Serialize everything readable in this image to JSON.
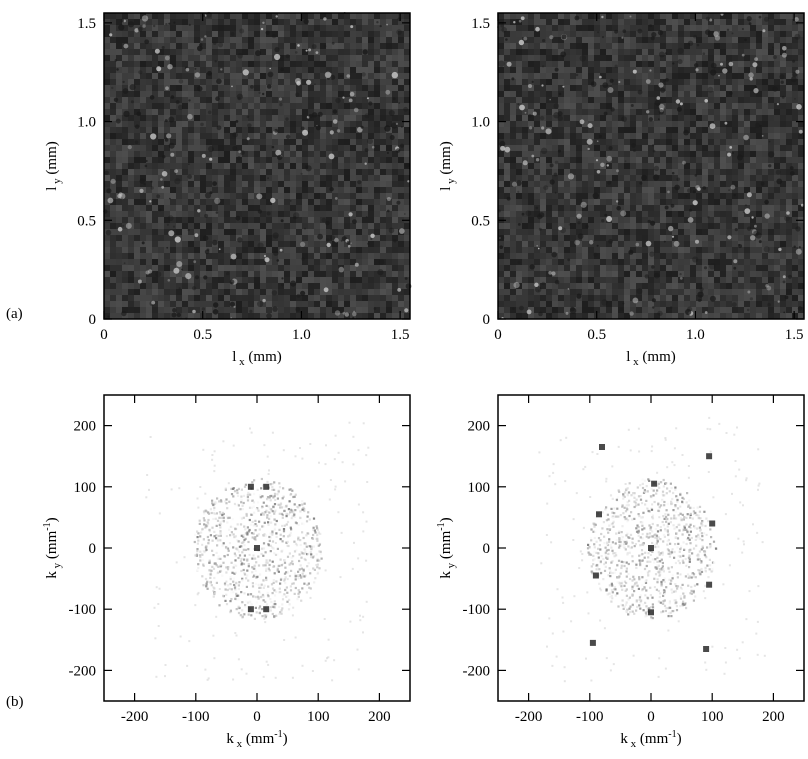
{
  "panel_labels": {
    "a": "(a)",
    "b": "(b)"
  },
  "chart_data": [
    {
      "type": "heatmap",
      "panel": "a",
      "kind": "real-space surface image",
      "xlabel_main": "l",
      "xlabel_sub": "x",
      "xlabel_unit": " (mm)",
      "ylabel_main": "l",
      "ylabel_sub": "y",
      "ylabel_unit": " (mm)",
      "xlim": [
        0,
        1.55
      ],
      "ylim": [
        0,
        1.55
      ],
      "xticks": [
        0,
        0.5,
        1.0,
        1.5
      ],
      "xtick_labels": [
        "0",
        "0.5",
        "1.0",
        "1.5"
      ],
      "yticks": [
        0,
        0.5,
        1.0,
        1.5
      ],
      "ytick_labels": [
        "0",
        "0.5",
        "1.0",
        "1.5"
      ],
      "colors": {
        "background": "#3a3a3a",
        "light": "#c8c8c8",
        "dark": "#1a1a1a"
      }
    },
    {
      "type": "heatmap",
      "panel": "a",
      "kind": "real-space surface image",
      "xlabel_main": "l",
      "xlabel_sub": "x",
      "xlabel_unit": " (mm)",
      "ylabel_main": "l",
      "ylabel_sub": "y",
      "ylabel_unit": " (mm)",
      "xlim": [
        0,
        1.55
      ],
      "ylim": [
        0,
        1.55
      ],
      "xticks": [
        0,
        0.5,
        1.0,
        1.5
      ],
      "xtick_labels": [
        "0",
        "0.5",
        "1.0",
        "1.5"
      ],
      "yticks": [
        0,
        0.5,
        1.0,
        1.5
      ],
      "ytick_labels": [
        "0",
        "0.5",
        "1.0",
        "1.5"
      ],
      "colors": {
        "background": "#3a3a3a",
        "light": "#c8c8c8",
        "dark": "#1a1a1a"
      }
    },
    {
      "type": "heatmap",
      "panel": "b",
      "kind": "power spectrum",
      "xlabel_main": "k",
      "xlabel_sub": "x",
      "xlabel_unit_pre": " (mm",
      "xlabel_unit_sup": "-1",
      "xlabel_unit_post": ")",
      "ylabel_main": "k",
      "ylabel_sub": "y",
      "ylabel_unit_pre": " (mm",
      "ylabel_unit_sup": "-1",
      "ylabel_unit_post": ")",
      "xlim": [
        -250,
        250
      ],
      "ylim": [
        -250,
        250
      ],
      "xticks": [
        -200,
        -100,
        0,
        100,
        200
      ],
      "xtick_labels": [
        "-200",
        "-100",
        "0",
        "100",
        "200"
      ],
      "yticks": [
        -200,
        -100,
        0,
        100,
        200
      ],
      "ytick_labels": [
        "-200",
        "-100",
        "0",
        "100",
        "200"
      ],
      "peaks": [
        [
          0,
          0
        ],
        [
          -10,
          100
        ],
        [
          15,
          100
        ],
        [
          -10,
          -100
        ],
        [
          15,
          -100
        ]
      ]
    },
    {
      "type": "heatmap",
      "panel": "b",
      "kind": "power spectrum",
      "xlabel_main": "k",
      "xlabel_sub": "x",
      "xlabel_unit_pre": " (mm",
      "xlabel_unit_sup": "-1",
      "xlabel_unit_post": ")",
      "ylabel_main": "k",
      "ylabel_sub": "y",
      "ylabel_unit_pre": " (mm",
      "ylabel_unit_sup": "-1",
      "ylabel_unit_post": ")",
      "xlim": [
        -250,
        250
      ],
      "ylim": [
        -250,
        250
      ],
      "xticks": [
        -200,
        -100,
        0,
        100,
        200
      ],
      "xtick_labels": [
        "-200",
        "-100",
        "0",
        "100",
        "200"
      ],
      "yticks": [
        -200,
        -100,
        0,
        100,
        200
      ],
      "ytick_labels": [
        "-200",
        "-100",
        "0",
        "100",
        "200"
      ],
      "peaks": [
        [
          0,
          0
        ],
        [
          5,
          105
        ],
        [
          0,
          -105
        ],
        [
          -80,
          165
        ],
        [
          95,
          150
        ],
        [
          -85,
          55
        ],
        [
          100,
          40
        ],
        [
          -90,
          -45
        ],
        [
          95,
          -60
        ],
        [
          -95,
          -155
        ],
        [
          90,
          -165
        ]
      ]
    }
  ]
}
